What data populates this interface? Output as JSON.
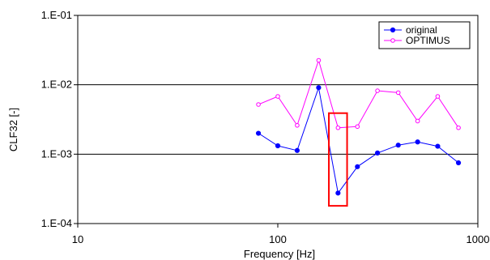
{
  "chart_data": {
    "type": "line",
    "title": "",
    "xlabel": "Frequency [Hz]",
    "ylabel": "CLF32 [-]",
    "x_scale": "log",
    "y_scale": "log",
    "xlim": [
      10,
      1000
    ],
    "ylim": [
      0.0001,
      0.1
    ],
    "x_ticks": [
      {
        "value": 10,
        "label": "10"
      },
      {
        "value": 100,
        "label": "100"
      },
      {
        "value": 1000,
        "label": "1000"
      }
    ],
    "y_ticks": [
      {
        "value": 0.0001,
        "label": "1.E-04"
      },
      {
        "value": 0.001,
        "label": "1.E-03"
      },
      {
        "value": 0.01,
        "label": "1.E-02"
      },
      {
        "value": 0.1,
        "label": "1.E-01"
      }
    ],
    "grid": "horizontal major",
    "legend_position": "top-right",
    "x": [
      80,
      100,
      125,
      160,
      200,
      250,
      315,
      400,
      500,
      630,
      800
    ],
    "series": [
      {
        "name": "original",
        "color": "#0000ff",
        "marker": "filled-circle",
        "values": [
          0.002,
          0.00132,
          0.00113,
          0.0091,
          0.000275,
          0.00066,
          0.00104,
          0.00135,
          0.0015,
          0.0013,
          0.00075
        ]
      },
      {
        "name": "OPTIMUS",
        "color": "#ff00ff",
        "marker": "open-circle",
        "values": [
          0.0052,
          0.0068,
          0.0026,
          0.0225,
          0.0024,
          0.0025,
          0.0082,
          0.0077,
          0.003,
          0.0068,
          0.0024
        ]
      }
    ],
    "annotation": {
      "type": "highlight-rectangle",
      "color": "#ff0000",
      "x_range": [
        180,
        222
      ],
      "y_range": [
        0.00018,
        0.0039
      ]
    }
  }
}
